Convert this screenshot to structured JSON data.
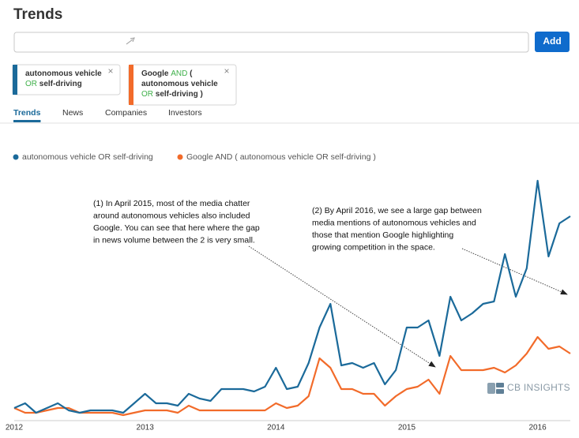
{
  "header": {
    "title": "Trends",
    "button": "Add"
  },
  "chips": [
    {
      "color": "#1b6a9a",
      "close": "×",
      "lines": [
        [
          {
            "text": "autonomous vehicle"
          }
        ],
        [
          {
            "text": "OR",
            "color": "#3fb04a"
          },
          {
            "text": "self-driving"
          }
        ]
      ]
    },
    {
      "color": "#f26b2a",
      "close": "×",
      "lines": [
        [
          {
            "text": "Google"
          },
          {
            "text": "AND",
            "color": "#3fb04a"
          },
          {
            "text": "("
          }
        ],
        [
          {
            "text": "autonomous vehicle"
          }
        ],
        [
          {
            "text": "OR",
            "color": "#3fb04a"
          },
          {
            "text": "self-driving )"
          }
        ]
      ]
    }
  ],
  "tabs": {
    "items": [
      "Trends",
      "News",
      "Companies",
      "Investors"
    ],
    "active": 0
  },
  "chart_data": {
    "type": "line",
    "categories": [
      "2012",
      null,
      null,
      null,
      null,
      null,
      null,
      null,
      null,
      null,
      null,
      null,
      "2013",
      null,
      null,
      null,
      null,
      null,
      null,
      null,
      null,
      null,
      null,
      null,
      "2014",
      null,
      null,
      null,
      null,
      null,
      null,
      null,
      null,
      null,
      null,
      null,
      "2015",
      null,
      null,
      null,
      null,
      null,
      null,
      null,
      null,
      null,
      null,
      null,
      "2016",
      null,
      null,
      null
    ],
    "series": [
      {
        "name": "autonomous vehicle OR self-driving",
        "color": "#1b6a9a",
        "values": [
          5,
          7,
          3,
          5,
          7,
          4,
          3,
          4,
          4,
          4,
          3,
          7,
          11,
          7,
          7,
          6,
          11,
          9,
          8,
          13,
          13,
          13,
          12,
          14,
          22,
          13,
          14,
          24,
          39,
          49,
          23,
          24,
          22,
          24,
          15,
          21,
          39,
          39,
          42,
          27,
          52,
          42,
          45,
          49,
          50,
          70,
          52,
          64,
          101,
          69,
          83,
          86
        ]
      },
      {
        "name": "Google AND ( autonomous vehicle OR self-driving )",
        "color": "#f26b2a",
        "values": [
          5,
          3,
          3,
          4,
          5,
          5,
          3,
          3,
          3,
          3,
          2,
          3,
          4,
          4,
          4,
          3,
          6,
          4,
          4,
          4,
          4,
          4,
          4,
          4,
          7,
          5,
          6,
          10,
          26,
          22,
          13,
          13,
          11,
          11,
          6,
          10,
          13,
          14,
          17,
          11,
          27,
          21,
          21,
          21,
          22,
          20,
          23,
          28,
          35,
          30,
          31,
          28
        ]
      }
    ],
    "ylim": [
      0,
      105
    ],
    "annotations": [
      [
        "(1) In April 2015, most of the media chatter",
        "around autonomous vehicles also included",
        "Google. You can see that here where the gap",
        "in news volume between the 2 is very small."
      ],
      [
        "(2) By April 2016, we see a large gap between",
        "media mentions of autonomous vehicles and",
        "those that mention Google highlighting",
        "growing competition in the space."
      ]
    ],
    "watermark": "CB INSIGHTS"
  }
}
